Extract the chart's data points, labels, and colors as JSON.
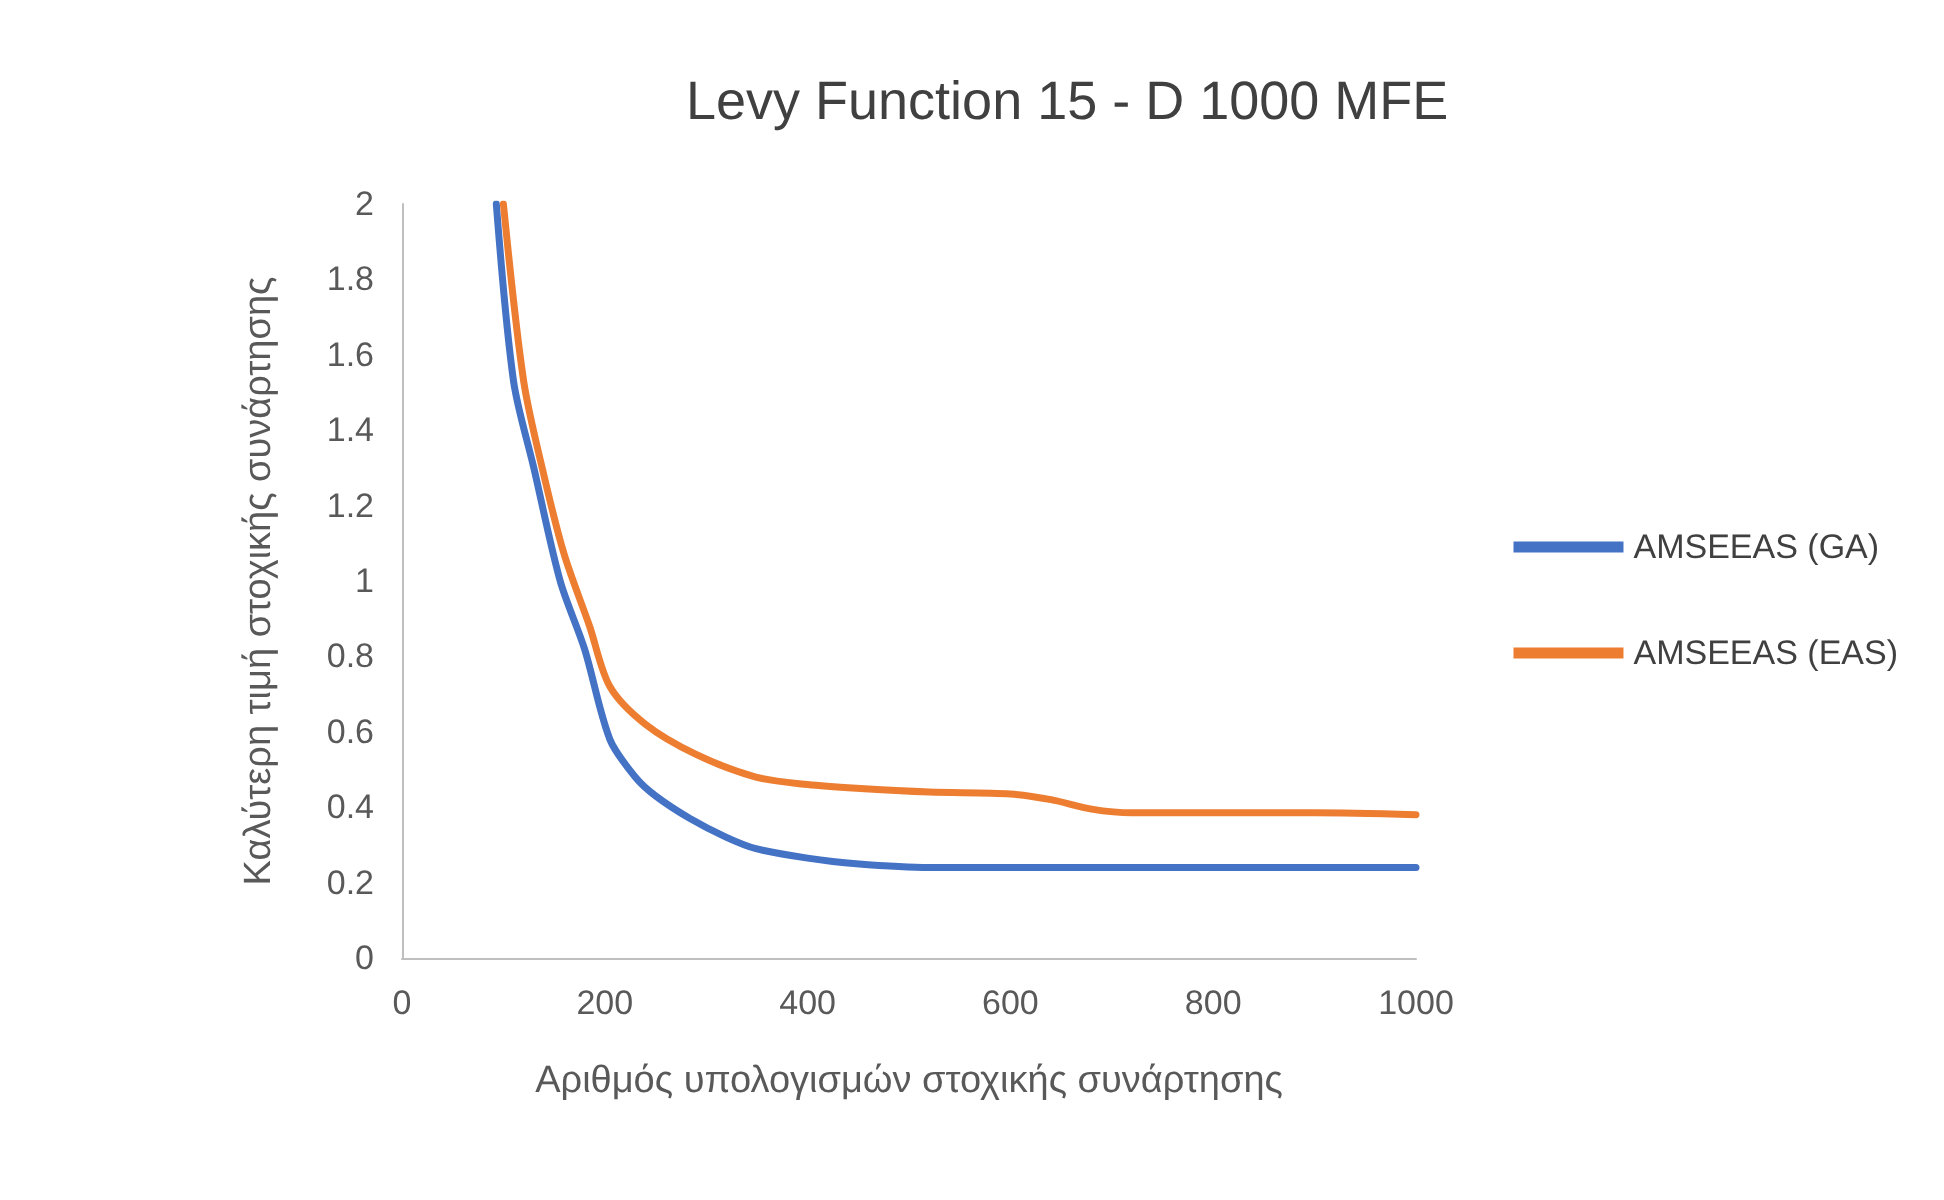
{
  "chart_data": {
    "type": "line",
    "title": "Levy Function 15 - D 1000 MFE",
    "xlabel": "Αριθμός υπολογισμών στοχικής συνάρτησης",
    "ylabel": "Καλύτερη τιμή στοχικής συνάρτησης",
    "xlim": [
      0,
      1000
    ],
    "xticks": [
      0,
      200,
      400,
      600,
      800,
      1000
    ],
    "ylim": [
      0,
      2
    ],
    "yticks": [
      0,
      0.2,
      0.4,
      0.6,
      0.8,
      1,
      1.2,
      1.4,
      1.6,
      1.8,
      2
    ],
    "grid": false,
    "legend": "right",
    "marker": "none",
    "line_style": "solid",
    "series": [
      {
        "name": "AMSEEAS (GA)",
        "color": "#4472c4",
        "x": [
          93,
          110,
          130,
          156,
          180,
          205,
          230,
          250,
          284,
          320,
          349,
          400,
          448,
          520,
          600,
          700,
          800,
          900,
          1000
        ],
        "values": [
          2,
          1.53,
          1.3,
          1.0,
          0.82,
          0.58,
          0.48,
          0.43,
          0.37,
          0.32,
          0.29,
          0.265,
          0.25,
          0.24,
          0.24,
          0.24,
          0.24,
          0.24,
          0.24
        ]
      },
      {
        "name": "AMSEEAS (EAS)",
        "color": "#ed7d31",
        "x": [
          100,
          120,
          140,
          160,
          185,
          205,
          240,
          290,
          349,
          400,
          448,
          520,
          600,
          640,
          680,
          720,
          800,
          900,
          1000
        ],
        "values": [
          2,
          1.53,
          1.28,
          1.07,
          0.88,
          0.72,
          0.62,
          0.54,
          0.48,
          0.46,
          0.45,
          0.44,
          0.435,
          0.42,
          0.395,
          0.385,
          0.385,
          0.385,
          0.38
        ]
      }
    ]
  }
}
